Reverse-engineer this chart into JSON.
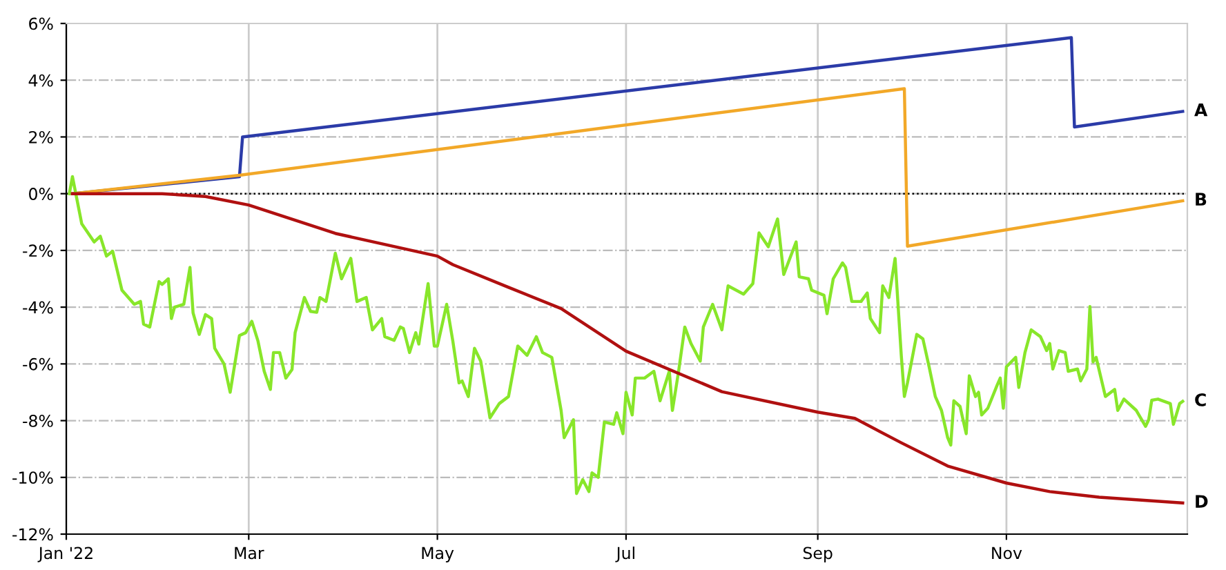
{
  "chart_data": {
    "type": "line",
    "xlim": [
      "2022-01-01",
      "2022-12-29T12:00"
    ],
    "xticks": [
      {
        "value": "2022-01-01",
        "label": "Jan '22"
      },
      {
        "value": "2022-03-01",
        "label": "Mar"
      },
      {
        "value": "2022-05-01",
        "label": "May"
      },
      {
        "value": "2022-07-01",
        "label": "Jul"
      },
      {
        "value": "2022-09-01",
        "label": "Sep"
      },
      {
        "value": "2022-11-01",
        "label": "Nov"
      }
    ],
    "ylim": [
      -12,
      6
    ],
    "yticks": [
      {
        "value": -12,
        "label": "-12%"
      },
      {
        "value": -10,
        "label": "-10%"
      },
      {
        "value": -8,
        "label": "-8%"
      },
      {
        "value": -6,
        "label": "-6%"
      },
      {
        "value": -4,
        "label": "-4%"
      },
      {
        "value": -2,
        "label": "-2%"
      },
      {
        "value": 0,
        "label": "0%"
      },
      {
        "value": 2,
        "label": "2%"
      },
      {
        "value": 4,
        "label": "4%"
      },
      {
        "value": 6,
        "label": "6%"
      }
    ],
    "grid": true,
    "ref_lines": [
      {
        "axis": "y",
        "value": 0,
        "color": "#000000",
        "line_style": "dotted"
      }
    ],
    "series": [
      {
        "name": "A",
        "color": "#2b3ba8",
        "x": [
          "2022-01-03",
          "2022-02-26",
          "2022-02-27",
          "2022-11-22",
          "2022-11-23",
          "2022-12-28"
        ],
        "values": [
          0,
          0.6,
          2.0,
          5.5,
          2.35,
          2.9
        ]
      },
      {
        "name": "B",
        "color": "#f2a828",
        "x": [
          "2022-01-03",
          "2022-02-26",
          "2022-09-29",
          "2022-09-30",
          "2022-12-28"
        ],
        "values": [
          0,
          0.65,
          3.7,
          -1.85,
          -0.25
        ]
      },
      {
        "name": "C",
        "color": "#88e62a",
        "x": [
          "2022-01-02",
          "2022-01-03",
          "2022-01-06",
          "2022-01-10",
          "2022-01-12",
          "2022-01-14",
          "2022-01-16",
          "2022-01-19",
          "2022-01-23",
          "2022-01-25",
          "2022-01-26",
          "2022-01-28",
          "2022-01-31",
          "2022-02-01",
          "2022-02-03",
          "2022-02-04",
          "2022-02-05",
          "2022-02-08",
          "2022-02-10",
          "2022-02-11",
          "2022-02-13",
          "2022-02-15",
          "2022-02-17",
          "2022-02-18",
          "2022-02-21",
          "2022-02-23",
          "2022-02-26",
          "2022-02-28",
          "2022-03-02",
          "2022-03-04",
          "2022-03-06",
          "2022-03-08",
          "2022-03-09",
          "2022-03-11",
          "2022-03-13",
          "2022-03-15",
          "2022-03-16",
          "2022-03-19",
          "2022-03-21",
          "2022-03-23",
          "2022-03-24",
          "2022-03-26",
          "2022-03-29",
          "2022-03-31",
          "2022-04-03",
          "2022-04-05",
          "2022-04-08",
          "2022-04-10",
          "2022-04-13",
          "2022-04-14",
          "2022-04-17",
          "2022-04-19",
          "2022-04-20",
          "2022-04-22",
          "2022-04-24",
          "2022-04-25",
          "2022-04-28",
          "2022-04-30",
          "2022-05-01",
          "2022-05-04",
          "2022-05-06",
          "2022-05-08",
          "2022-05-09",
          "2022-05-11",
          "2022-05-13",
          "2022-05-15",
          "2022-05-18",
          "2022-05-21",
          "2022-05-24",
          "2022-05-27",
          "2022-05-30",
          "2022-06-02",
          "2022-06-04",
          "2022-06-07",
          "2022-06-10",
          "2022-06-11",
          "2022-06-14",
          "2022-06-15",
          "2022-06-17",
          "2022-06-19",
          "2022-06-20",
          "2022-06-22",
          "2022-06-24",
          "2022-06-27",
          "2022-06-28",
          "2022-06-30",
          "2022-07-01",
          "2022-07-03",
          "2022-07-04",
          "2022-07-07",
          "2022-07-10",
          "2022-07-12",
          "2022-07-15",
          "2022-07-16",
          "2022-07-18",
          "2022-07-20",
          "2022-07-22",
          "2022-07-25",
          "2022-07-26",
          "2022-07-29",
          "2022-08-01",
          "2022-08-03",
          "2022-08-08",
          "2022-08-11",
          "2022-08-13",
          "2022-08-16",
          "2022-08-19",
          "2022-08-21",
          "2022-08-25",
          "2022-08-26",
          "2022-08-29",
          "2022-08-30",
          "2022-09-03",
          "2022-09-04",
          "2022-09-06",
          "2022-09-09",
          "2022-09-10",
          "2022-09-12",
          "2022-09-15",
          "2022-09-17",
          "2022-09-18",
          "2022-09-21",
          "2022-09-22",
          "2022-09-24",
          "2022-09-26",
          "2022-09-28",
          "2022-09-29",
          "2022-09-30",
          "2022-10-03",
          "2022-10-05",
          "2022-10-07",
          "2022-10-09",
          "2022-10-11",
          "2022-10-13",
          "2022-10-14",
          "2022-10-15",
          "2022-10-17",
          "2022-10-19",
          "2022-10-20",
          "2022-10-22",
          "2022-10-23",
          "2022-10-24",
          "2022-10-26",
          "2022-10-29",
          "2022-10-30",
          "2022-10-31",
          "2022-11-01",
          "2022-11-04",
          "2022-11-05",
          "2022-11-07",
          "2022-11-09",
          "2022-11-12",
          "2022-11-14",
          "2022-11-15",
          "2022-11-16",
          "2022-11-18",
          "2022-11-20",
          "2022-11-21",
          "2022-11-24",
          "2022-11-25",
          "2022-11-27",
          "2022-11-28",
          "2022-11-29",
          "2022-11-30",
          "2022-12-03",
          "2022-12-06",
          "2022-12-07",
          "2022-12-09",
          "2022-12-13",
          "2022-12-16",
          "2022-12-17",
          "2022-12-18",
          "2022-12-20",
          "2022-12-24",
          "2022-12-25",
          "2022-12-27",
          "2022-12-28"
        ],
        "values": [
          0,
          0.6,
          -1.06,
          -1.7,
          -1.5,
          -2.2,
          -2.03,
          -3.4,
          -3.9,
          -3.8,
          -4.6,
          -4.7,
          -3.1,
          -3.2,
          -3.0,
          -4.4,
          -4.0,
          -3.9,
          -2.6,
          -4.2,
          -4.96,
          -4.26,
          -4.4,
          -5.45,
          -6.0,
          -7.0,
          -5.0,
          -4.9,
          -4.5,
          -5.2,
          -6.26,
          -6.9,
          -5.6,
          -5.6,
          -6.5,
          -6.2,
          -4.9,
          -3.66,
          -4.15,
          -4.18,
          -3.66,
          -3.8,
          -2.1,
          -3.0,
          -2.28,
          -3.8,
          -3.66,
          -4.8,
          -4.4,
          -5.04,
          -5.17,
          -4.7,
          -4.75,
          -5.6,
          -4.9,
          -5.3,
          -3.17,
          -5.37,
          -5.37,
          -3.9,
          -5.2,
          -6.67,
          -6.6,
          -7.15,
          -5.45,
          -5.9,
          -7.9,
          -7.4,
          -7.15,
          -5.37,
          -5.7,
          -5.04,
          -5.6,
          -5.77,
          -7.64,
          -8.6,
          -7.97,
          -10.57,
          -10.08,
          -10.5,
          -9.84,
          -10.0,
          -8.05,
          -8.13,
          -7.72,
          -8.46,
          -7.0,
          -7.8,
          -6.5,
          -6.5,
          -6.26,
          -7.3,
          -6.26,
          -7.64,
          -6.26,
          -4.7,
          -5.28,
          -5.9,
          -4.7,
          -3.9,
          -4.8,
          -3.25,
          -3.54,
          -3.17,
          -1.38,
          -1.87,
          -0.89,
          -2.85,
          -1.7,
          -2.93,
          -3.0,
          -3.4,
          -3.58,
          -4.23,
          -3.0,
          -2.44,
          -2.6,
          -3.8,
          -3.8,
          -3.5,
          -4.4,
          -4.9,
          -3.25,
          -3.66,
          -2.28,
          -5.7,
          -7.15,
          -6.67,
          -4.96,
          -5.12,
          -6.1,
          -7.15,
          -7.64,
          -8.6,
          -8.86,
          -7.3,
          -7.5,
          -8.46,
          -6.42,
          -7.15,
          -7.0,
          -7.8,
          -7.56,
          -6.75,
          -6.5,
          -7.56,
          -6.1,
          -5.77,
          -6.83,
          -5.6,
          -4.8,
          -5.04,
          -5.53,
          -5.28,
          -6.18,
          -5.53,
          -5.6,
          -6.26,
          -6.18,
          -6.6,
          -6.18,
          -3.98,
          -5.93,
          -5.77,
          -7.15,
          -6.9,
          -7.64,
          -7.24,
          -7.64,
          -8.2,
          -7.97,
          -7.28,
          -7.24,
          -7.4,
          -8.13,
          -7.4,
          -7.32
        ]
      },
      {
        "name": "D",
        "color": "#b01010",
        "x": [
          "2022-01-03",
          "2022-02-01",
          "2022-02-15",
          "2022-03-01",
          "2022-03-29",
          "2022-05-01",
          "2022-05-06",
          "2022-05-24",
          "2022-06-10",
          "2022-07-01",
          "2022-08-01",
          "2022-09-01",
          "2022-09-13",
          "2022-09-28",
          "2022-10-13",
          "2022-11-01",
          "2022-11-15",
          "2022-12-01",
          "2022-12-28"
        ],
        "values": [
          0,
          0,
          -0.1,
          -0.4,
          -1.4,
          -2.2,
          -2.5,
          -3.3,
          -4.05,
          -5.55,
          -6.98,
          -7.7,
          -7.92,
          -8.78,
          -9.6,
          -10.2,
          -10.5,
          -10.7,
          -10.9
        ]
      }
    ]
  }
}
